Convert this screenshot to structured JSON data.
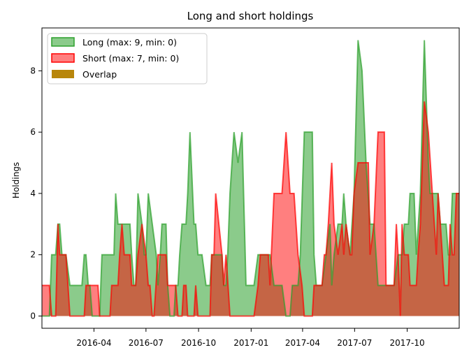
{
  "chart_data": {
    "type": "area",
    "title": "Long and short holdings",
    "xlabel": "",
    "ylabel": "Holdings",
    "xlim": [
      "2016-01-01",
      "2017-12-31"
    ],
    "ylim": [
      -0.4,
      9.4
    ],
    "y_ticks": [
      0,
      2,
      4,
      6,
      8
    ],
    "x_ticks": [
      {
        "date": "2016-04-01",
        "label": "2016-04"
      },
      {
        "date": "2016-07-01",
        "label": "2016-07"
      },
      {
        "date": "2016-10-01",
        "label": "2016-10"
      },
      {
        "date": "2017-01-01",
        "label": "2017-01"
      },
      {
        "date": "2017-04-01",
        "label": "2017-04"
      },
      {
        "date": "2017-07-01",
        "label": "2017-07"
      },
      {
        "date": "2017-10-01",
        "label": "2017-10"
      }
    ],
    "legend_position": "top-left",
    "series": [
      {
        "name": "Long (max: 9, min: 0)",
        "color": "#2ca02c",
        "points": [
          [
            "2016-01-01",
            0
          ],
          [
            "2016-01-14",
            0
          ],
          [
            "2016-01-18",
            2
          ],
          [
            "2016-01-25",
            2
          ],
          [
            "2016-01-29",
            3
          ],
          [
            "2016-02-01",
            3
          ],
          [
            "2016-02-05",
            2
          ],
          [
            "2016-02-12",
            2
          ],
          [
            "2016-02-19",
            1
          ],
          [
            "2016-03-11",
            1
          ],
          [
            "2016-03-15",
            2
          ],
          [
            "2016-03-18",
            2
          ],
          [
            "2016-03-22",
            1
          ],
          [
            "2016-03-25",
            1
          ],
          [
            "2016-03-29",
            0
          ],
          [
            "2016-04-11",
            0
          ],
          [
            "2016-04-15",
            2
          ],
          [
            "2016-05-06",
            2
          ],
          [
            "2016-05-09",
            4
          ],
          [
            "2016-05-13",
            3
          ],
          [
            "2016-06-03",
            3
          ],
          [
            "2016-06-06",
            2
          ],
          [
            "2016-06-10",
            1
          ],
          [
            "2016-06-13",
            1
          ],
          [
            "2016-06-17",
            4
          ],
          [
            "2016-06-24",
            3
          ],
          [
            "2016-06-28",
            2
          ],
          [
            "2016-07-01",
            2
          ],
          [
            "2016-07-05",
            4
          ],
          [
            "2016-07-12",
            3
          ],
          [
            "2016-07-19",
            2
          ],
          [
            "2016-07-22",
            1
          ],
          [
            "2016-07-26",
            2
          ],
          [
            "2016-07-29",
            3
          ],
          [
            "2016-08-05",
            3
          ],
          [
            "2016-08-08",
            1
          ],
          [
            "2016-08-12",
            0
          ],
          [
            "2016-08-19",
            0
          ],
          [
            "2016-08-22",
            1
          ],
          [
            "2016-08-26",
            1
          ],
          [
            "2016-08-29",
            2
          ],
          [
            "2016-09-02",
            3
          ],
          [
            "2016-09-09",
            3
          ],
          [
            "2016-09-12",
            4
          ],
          [
            "2016-09-16",
            6
          ],
          [
            "2016-09-23",
            3
          ],
          [
            "2016-09-26",
            3
          ],
          [
            "2016-09-30",
            2
          ],
          [
            "2016-10-07",
            2
          ],
          [
            "2016-10-14",
            1
          ],
          [
            "2016-10-21",
            1
          ],
          [
            "2016-10-24",
            2
          ],
          [
            "2016-11-11",
            2
          ],
          [
            "2016-11-14",
            1
          ],
          [
            "2016-11-18",
            1
          ],
          [
            "2016-11-21",
            2
          ],
          [
            "2016-11-25",
            4
          ],
          [
            "2016-12-02",
            6
          ],
          [
            "2016-12-09",
            5
          ],
          [
            "2016-12-16",
            6
          ],
          [
            "2016-12-23",
            1
          ],
          [
            "2017-01-06",
            1
          ],
          [
            "2017-01-13",
            2
          ],
          [
            "2017-02-03",
            2
          ],
          [
            "2017-02-10",
            1
          ],
          [
            "2017-02-24",
            1
          ],
          [
            "2017-03-03",
            0
          ],
          [
            "2017-03-10",
            0
          ],
          [
            "2017-03-14",
            1
          ],
          [
            "2017-03-24",
            1
          ],
          [
            "2017-03-28",
            2
          ],
          [
            "2017-04-04",
            6
          ],
          [
            "2017-04-18",
            6
          ],
          [
            "2017-04-21",
            2
          ],
          [
            "2017-04-25",
            1
          ],
          [
            "2017-05-05",
            1
          ],
          [
            "2017-05-12",
            2
          ],
          [
            "2017-05-19",
            3
          ],
          [
            "2017-05-22",
            1
          ],
          [
            "2017-05-26",
            2
          ],
          [
            "2017-06-02",
            3
          ],
          [
            "2017-06-09",
            3
          ],
          [
            "2017-06-12",
            4
          ],
          [
            "2017-06-16",
            3
          ],
          [
            "2017-06-23",
            2
          ],
          [
            "2017-06-30",
            4
          ],
          [
            "2017-07-07",
            9
          ],
          [
            "2017-07-14",
            8
          ],
          [
            "2017-07-21",
            5
          ],
          [
            "2017-07-28",
            3
          ],
          [
            "2017-08-04",
            3
          ],
          [
            "2017-08-11",
            1
          ],
          [
            "2017-09-08",
            1
          ],
          [
            "2017-09-15",
            2
          ],
          [
            "2017-09-22",
            2
          ],
          [
            "2017-09-26",
            3
          ],
          [
            "2017-10-03",
            3
          ],
          [
            "2017-10-06",
            4
          ],
          [
            "2017-10-13",
            4
          ],
          [
            "2017-10-17",
            2
          ],
          [
            "2017-10-24",
            4
          ],
          [
            "2017-10-31",
            9
          ],
          [
            "2017-11-07",
            5
          ],
          [
            "2017-11-10",
            4
          ],
          [
            "2017-11-24",
            4
          ],
          [
            "2017-11-28",
            3
          ],
          [
            "2017-12-08",
            3
          ],
          [
            "2017-12-12",
            2
          ],
          [
            "2017-12-15",
            2
          ],
          [
            "2017-12-19",
            4
          ],
          [
            "2017-12-31",
            4
          ]
        ]
      },
      {
        "name": "Short (max: 7, min: 0)",
        "color": "#ff0000",
        "points": [
          [
            "2016-01-01",
            1
          ],
          [
            "2016-01-14",
            1
          ],
          [
            "2016-01-18",
            0
          ],
          [
            "2016-01-25",
            0
          ],
          [
            "2016-01-29",
            3
          ],
          [
            "2016-02-01",
            2
          ],
          [
            "2016-02-05",
            2
          ],
          [
            "2016-02-12",
            2
          ],
          [
            "2016-02-19",
            0
          ],
          [
            "2016-03-11",
            0
          ],
          [
            "2016-03-15",
            0
          ],
          [
            "2016-03-18",
            1
          ],
          [
            "2016-03-22",
            1
          ],
          [
            "2016-03-25",
            1
          ],
          [
            "2016-03-29",
            1
          ],
          [
            "2016-04-08",
            1
          ],
          [
            "2016-04-11",
            0
          ],
          [
            "2016-04-29",
            0
          ],
          [
            "2016-05-02",
            1
          ],
          [
            "2016-05-13",
            1
          ],
          [
            "2016-05-16",
            2
          ],
          [
            "2016-05-20",
            3
          ],
          [
            "2016-05-24",
            2
          ],
          [
            "2016-06-03",
            2
          ],
          [
            "2016-06-06",
            1
          ],
          [
            "2016-06-13",
            1
          ],
          [
            "2016-06-17",
            2
          ],
          [
            "2016-06-24",
            3
          ],
          [
            "2016-07-01",
            2
          ],
          [
            "2016-07-05",
            1
          ],
          [
            "2016-07-08",
            1
          ],
          [
            "2016-07-12",
            0
          ],
          [
            "2016-07-15",
            0
          ],
          [
            "2016-07-22",
            2
          ],
          [
            "2016-08-05",
            2
          ],
          [
            "2016-08-08",
            1
          ],
          [
            "2016-08-12",
            1
          ],
          [
            "2016-08-19",
            1
          ],
          [
            "2016-08-22",
            1
          ],
          [
            "2016-08-26",
            0
          ],
          [
            "2016-09-02",
            0
          ],
          [
            "2016-09-05",
            1
          ],
          [
            "2016-09-09",
            1
          ],
          [
            "2016-09-12",
            0
          ],
          [
            "2016-09-23",
            0
          ],
          [
            "2016-09-26",
            1
          ],
          [
            "2016-09-30",
            0
          ],
          [
            "2016-10-07",
            0
          ],
          [
            "2016-10-14",
            0
          ],
          [
            "2016-10-21",
            0
          ],
          [
            "2016-10-24",
            2
          ],
          [
            "2016-10-28",
            2
          ],
          [
            "2016-10-31",
            4
          ],
          [
            "2016-11-11",
            2
          ],
          [
            "2016-11-14",
            1
          ],
          [
            "2016-11-18",
            2
          ],
          [
            "2016-11-25",
            0
          ],
          [
            "2016-12-23",
            0
          ],
          [
            "2016-12-27",
            0
          ],
          [
            "2017-01-06",
            0
          ],
          [
            "2017-01-13",
            1
          ],
          [
            "2017-01-17",
            2
          ],
          [
            "2017-01-24",
            2
          ],
          [
            "2017-01-31",
            2
          ],
          [
            "2017-02-03",
            1
          ],
          [
            "2017-02-10",
            4
          ],
          [
            "2017-02-24",
            4
          ],
          [
            "2017-03-03",
            6
          ],
          [
            "2017-03-10",
            4
          ],
          [
            "2017-03-17",
            4
          ],
          [
            "2017-03-24",
            2
          ],
          [
            "2017-03-31",
            1
          ],
          [
            "2017-04-04",
            0
          ],
          [
            "2017-04-18",
            0
          ],
          [
            "2017-04-21",
            1
          ],
          [
            "2017-05-05",
            1
          ],
          [
            "2017-05-09",
            2
          ],
          [
            "2017-05-12",
            2
          ],
          [
            "2017-05-16",
            3
          ],
          [
            "2017-05-19",
            4
          ],
          [
            "2017-05-22",
            5
          ],
          [
            "2017-05-26",
            3
          ],
          [
            "2017-06-02",
            2
          ],
          [
            "2017-06-09",
            3
          ],
          [
            "2017-06-12",
            2
          ],
          [
            "2017-06-16",
            3
          ],
          [
            "2017-06-23",
            2
          ],
          [
            "2017-06-26",
            2
          ],
          [
            "2017-06-30",
            4
          ],
          [
            "2017-07-07",
            5
          ],
          [
            "2017-07-21",
            5
          ],
          [
            "2017-07-25",
            5
          ],
          [
            "2017-07-28",
            2
          ],
          [
            "2017-08-04",
            3
          ],
          [
            "2017-08-11",
            6
          ],
          [
            "2017-08-22",
            6
          ],
          [
            "2017-08-25",
            1
          ],
          [
            "2017-09-08",
            1
          ],
          [
            "2017-09-12",
            3
          ],
          [
            "2017-09-15",
            2
          ],
          [
            "2017-09-19",
            0
          ],
          [
            "2017-09-22",
            3
          ],
          [
            "2017-09-26",
            2
          ],
          [
            "2017-10-03",
            2
          ],
          [
            "2017-10-06",
            1
          ],
          [
            "2017-10-17",
            1
          ],
          [
            "2017-10-20",
            2
          ],
          [
            "2017-10-24",
            3
          ],
          [
            "2017-10-31",
            7
          ],
          [
            "2017-11-07",
            6
          ],
          [
            "2017-11-14",
            4
          ],
          [
            "2017-11-21",
            2
          ],
          [
            "2017-11-24",
            4
          ],
          [
            "2017-11-28",
            3
          ],
          [
            "2017-12-05",
            1
          ],
          [
            "2017-12-08",
            1
          ],
          [
            "2017-12-12",
            1
          ],
          [
            "2017-12-15",
            3
          ],
          [
            "2017-12-19",
            2
          ],
          [
            "2017-12-22",
            2
          ],
          [
            "2017-12-26",
            4
          ],
          [
            "2017-12-31",
            4
          ]
        ]
      },
      {
        "name": "Overlap",
        "color": "#b8860b"
      }
    ]
  }
}
